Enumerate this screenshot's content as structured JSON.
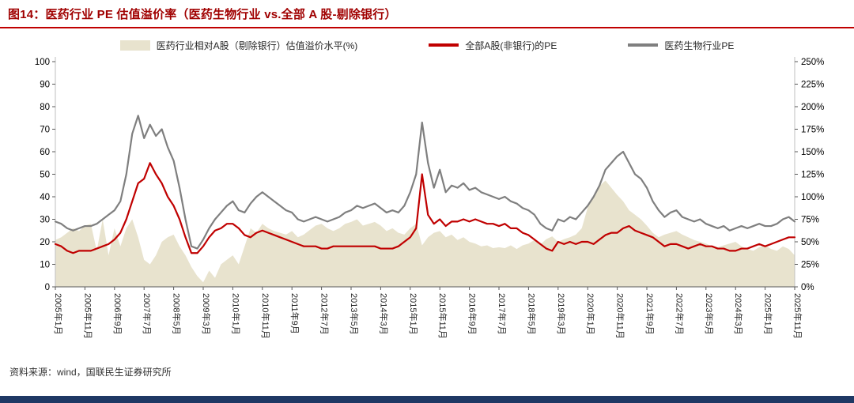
{
  "title": "图14：医药行业 PE 估值溢价率（医药生物行业 vs.全部 A 股-剔除银行）",
  "footer": {
    "source": "资料来源：wind，国联民生证券研究所"
  },
  "colors": {
    "title_red": "#A00000",
    "underline_red": "#C00000",
    "line_red": "#C00000",
    "line_gray": "#7F7F7F",
    "area_beige": "#E8E3CE",
    "bottom_bar_navy": "#1F3864"
  },
  "legend": [
    {
      "label": "医药行业相对A股（剔除银行）估值溢价水平(%)",
      "type": "area",
      "color": "#E8E3CE"
    },
    {
      "label": "全部A股(非银行)的PE",
      "type": "line",
      "color": "#C00000"
    },
    {
      "label": "医药生物行业PE",
      "type": "line",
      "color": "#7F7F7F"
    }
  ],
  "chart_data": {
    "type": "line+area",
    "title": "医药行业 PE 估值溢价率（医药生物行业 vs.全部 A 股-剔除银行）",
    "x_start": "2005-01",
    "x_end": "2025-11",
    "x_step_months": 2,
    "x_total_months": 250,
    "x_tick_step_months": 10,
    "x_tick_labels": [
      "2005年1月",
      "2005年11月",
      "2006年9月",
      "2007年7月",
      "2008年5月",
      "2009年3月",
      "2010年1月",
      "2010年11月",
      "2011年9月",
      "2012年7月",
      "2013年5月",
      "2014年3月",
      "2015年1月",
      "2015年11月",
      "2016年9月",
      "2017年7月",
      "2018年5月",
      "2019年3月",
      "2020年1月",
      "2020年11月",
      "2021年9月",
      "2022年7月",
      "2023年5月",
      "2024年3月",
      "2025年1月",
      "2025年11月"
    ],
    "left_axis": {
      "min": 0,
      "max": 100,
      "step": 10,
      "ticks": [
        "0",
        "10",
        "20",
        "30",
        "40",
        "50",
        "60",
        "70",
        "80",
        "90",
        "100"
      ]
    },
    "right_axis": {
      "min": 0,
      "max": 250,
      "step": 25,
      "unit": "%",
      "ticks": [
        "0%",
        "25%",
        "50%",
        "75%",
        "100%",
        "125%",
        "150%",
        "175%",
        "200%",
        "225%",
        "250%"
      ]
    },
    "grid": false,
    "legend_position": "top",
    "series": [
      {
        "name": "医药行业相对A股（剔除银行）估值溢价水平(%)",
        "axis": "right",
        "type": "area",
        "color": "#E8E3CE",
        "values": [
          52,
          55,
          60,
          65,
          62,
          68,
          70,
          40,
          75,
          35,
          65,
          45,
          65,
          75,
          55,
          30,
          25,
          35,
          50,
          55,
          58,
          45,
          35,
          22,
          12,
          5,
          18,
          10,
          25,
          30,
          35,
          25,
          45,
          65,
          60,
          70,
          65,
          62,
          60,
          58,
          62,
          55,
          58,
          63,
          68,
          70,
          65,
          62,
          65,
          70,
          72,
          75,
          68,
          70,
          72,
          68,
          62,
          65,
          60,
          58,
          65,
          70,
          46,
          55,
          60,
          62,
          55,
          58,
          52,
          55,
          50,
          48,
          45,
          46,
          43,
          44,
          43,
          46,
          42,
          46,
          48,
          52,
          47,
          53,
          56,
          50,
          53,
          55,
          58,
          65,
          88,
          100,
          112,
          118,
          110,
          102,
          95,
          85,
          80,
          75,
          68,
          60,
          55,
          58,
          60,
          62,
          58,
          55,
          52,
          50,
          48,
          45,
          44,
          46,
          48,
          50,
          45,
          42,
          40,
          44,
          46,
          42,
          40,
          45,
          42,
          35
        ]
      },
      {
        "name": "全部A股(非银行)的PE",
        "axis": "left",
        "type": "line",
        "color": "#C00000",
        "values": [
          19,
          18,
          16,
          15,
          16,
          16,
          16,
          17,
          18,
          19,
          21,
          24,
          30,
          38,
          46,
          48,
          55,
          50,
          46,
          40,
          36,
          30,
          22,
          15,
          15,
          18,
          22,
          25,
          26,
          28,
          28,
          26,
          23,
          22,
          24,
          25,
          24,
          23,
          22,
          21,
          20,
          19,
          18,
          18,
          18,
          17,
          17,
          18,
          18,
          18,
          18,
          18,
          18,
          18,
          18,
          17,
          17,
          17,
          18,
          20,
          22,
          26,
          50,
          32,
          28,
          30,
          27,
          29,
          29,
          30,
          29,
          30,
          29,
          28,
          28,
          27,
          28,
          26,
          26,
          24,
          23,
          21,
          19,
          17,
          16,
          20,
          19,
          20,
          19,
          20,
          20,
          19,
          21,
          23,
          24,
          24,
          26,
          27,
          25,
          24,
          23,
          22,
          20,
          18,
          19,
          19,
          18,
          17,
          18,
          19,
          18,
          18,
          17,
          17,
          16,
          16,
          17,
          17,
          18,
          19,
          18,
          19,
          20,
          21,
          22,
          22
        ]
      },
      {
        "name": "医药生物行业PE",
        "axis": "left",
        "type": "line",
        "color": "#7F7F7F",
        "values": [
          29,
          28,
          26,
          25,
          26,
          27,
          27,
          28,
          30,
          32,
          34,
          38,
          50,
          68,
          76,
          66,
          72,
          67,
          70,
          62,
          56,
          44,
          30,
          18,
          17,
          21,
          26,
          30,
          33,
          36,
          38,
          34,
          33,
          37,
          40,
          42,
          40,
          38,
          36,
          34,
          33,
          30,
          29,
          30,
          31,
          30,
          29,
          30,
          31,
          33,
          34,
          36,
          35,
          36,
          37,
          35,
          33,
          34,
          33,
          36,
          42,
          50,
          73,
          55,
          44,
          52,
          42,
          45,
          44,
          46,
          43,
          44,
          42,
          41,
          40,
          39,
          40,
          38,
          37,
          35,
          34,
          32,
          28,
          26,
          25,
          30,
          29,
          31,
          30,
          33,
          36,
          40,
          45,
          52,
          55,
          58,
          60,
          55,
          50,
          48,
          44,
          38,
          34,
          31,
          33,
          34,
          31,
          30,
          29,
          30,
          28,
          27,
          26,
          27,
          25,
          26,
          27,
          26,
          27,
          28,
          27,
          27,
          28,
          30,
          31,
          29
        ]
      }
    ]
  }
}
